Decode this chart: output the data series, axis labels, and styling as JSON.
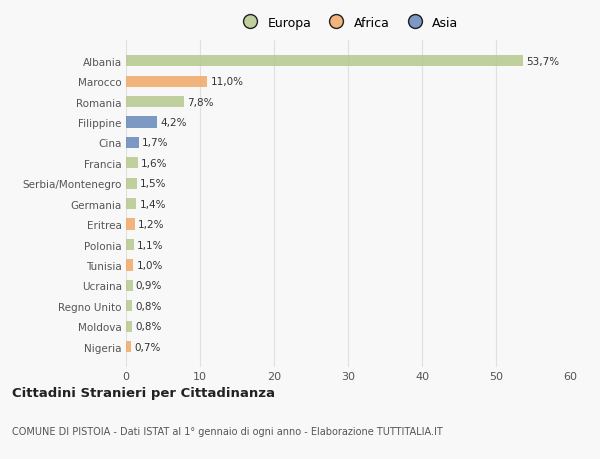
{
  "categories": [
    "Albania",
    "Marocco",
    "Romania",
    "Filippine",
    "Cina",
    "Francia",
    "Serbia/Montenegro",
    "Germania",
    "Eritrea",
    "Polonia",
    "Tunisia",
    "Ucraina",
    "Regno Unito",
    "Moldova",
    "Nigeria"
  ],
  "values": [
    53.7,
    11.0,
    7.8,
    4.2,
    1.7,
    1.6,
    1.5,
    1.4,
    1.2,
    1.1,
    1.0,
    0.9,
    0.8,
    0.8,
    0.7
  ],
  "labels": [
    "53,7%",
    "11,0%",
    "7,8%",
    "4,2%",
    "1,7%",
    "1,6%",
    "1,5%",
    "1,4%",
    "1,2%",
    "1,1%",
    "1,0%",
    "0,9%",
    "0,8%",
    "0,8%",
    "0,7%"
  ],
  "colors": [
    "#b5c98e",
    "#f0a868",
    "#b5c98e",
    "#6688bb",
    "#6688bb",
    "#b5c98e",
    "#b5c98e",
    "#b5c98e",
    "#f0a868",
    "#b5c98e",
    "#f0a868",
    "#b5c98e",
    "#b5c98e",
    "#b5c98e",
    "#f0a868"
  ],
  "legend_labels": [
    "Europa",
    "Africa",
    "Asia"
  ],
  "legend_colors": [
    "#b5c98e",
    "#f0a868",
    "#6688bb"
  ],
  "title": "Cittadini Stranieri per Cittadinanza",
  "subtitle": "COMUNE DI PISTOIA - Dati ISTAT al 1° gennaio di ogni anno - Elaborazione TUTTITALIA.IT",
  "xlim": [
    0,
    60
  ],
  "xticks": [
    0,
    10,
    20,
    30,
    40,
    50,
    60
  ],
  "background_color": "#f8f8f8",
  "grid_color": "#e0e0e0",
  "bar_height": 0.55,
  "label_fontsize": 7.5,
  "ytick_fontsize": 7.5,
  "xtick_fontsize": 8
}
